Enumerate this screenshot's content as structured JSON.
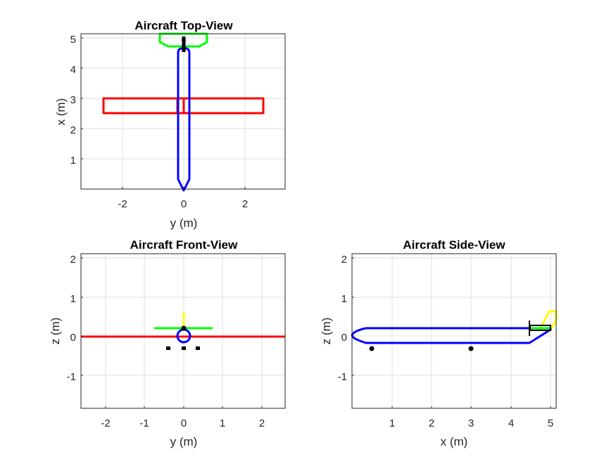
{
  "figure": {
    "background": "#ffffff",
    "colors": {
      "fuselage": "#0000ff",
      "wing": "#ff0000",
      "horizontal_tail": "#00ff00",
      "vertical_tail": "#ffff00",
      "marker": "#000000"
    }
  },
  "chart_data": [
    {
      "type": "diagram",
      "title": "Aircraft Top-View",
      "xlabel": "y (m)",
      "ylabel": "x (m)",
      "xlim": [
        -3.3,
        3.3
      ],
      "ylim": [
        0,
        5.1
      ],
      "xticks": [
        "-2",
        "0",
        "2"
      ],
      "yticks": [
        "1",
        "2",
        "3",
        "4",
        "5"
      ],
      "grid": true
    },
    {
      "type": "diagram",
      "title": "Aircraft Front-View",
      "xlabel": "y (m)",
      "ylabel": "z (m)",
      "xlim": [
        -2.6,
        2.6
      ],
      "ylim": [
        -1.85,
        2.1
      ],
      "xticks": [
        "-2",
        "-1",
        "0",
        "1",
        "2"
      ],
      "yticks": [
        "2",
        "1",
        "0",
        "-1"
      ],
      "grid": true
    },
    {
      "type": "diagram",
      "title": "Aircraft Side-View",
      "xlabel": "x (m)",
      "ylabel": "z (m)",
      "xlim": [
        0,
        5.1
      ],
      "ylim": [
        -1.85,
        2.1
      ],
      "xticks": [
        "1",
        "2",
        "3",
        "4",
        "5"
      ],
      "yticks": [
        "2",
        "1",
        "0",
        "-1"
      ],
      "grid": true
    }
  ]
}
